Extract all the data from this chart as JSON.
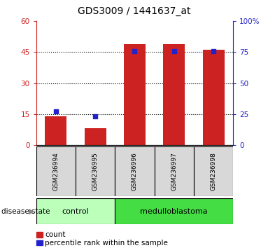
{
  "title": "GDS3009 / 1441637_at",
  "samples": [
    "GSM236994",
    "GSM236995",
    "GSM236996",
    "GSM236997",
    "GSM236998"
  ],
  "counts": [
    14,
    8,
    49,
    49,
    46
  ],
  "percentiles": [
    27,
    23,
    76,
    76,
    76
  ],
  "left_ylim": [
    0,
    60
  ],
  "right_ylim": [
    0,
    100
  ],
  "left_yticks": [
    0,
    15,
    30,
    45,
    60
  ],
  "right_yticks": [
    0,
    25,
    50,
    75,
    100
  ],
  "bar_color": "#cc2222",
  "marker_color": "#2222cc",
  "bar_width": 0.55,
  "groups": [
    {
      "label": "control",
      "indices": [
        0,
        1
      ],
      "color": "#bbffbb"
    },
    {
      "label": "medulloblastoma",
      "indices": [
        2,
        3,
        4
      ],
      "color": "#44dd44"
    }
  ],
  "group_label": "disease state",
  "legend_count": "count",
  "legend_percentile": "percentile rank within the sample",
  "left_axis_color": "#cc2222",
  "right_axis_color": "#2222cc",
  "grid_color": "black",
  "sample_box_color": "#d8d8d8",
  "title_fontsize": 10,
  "tick_fontsize": 7.5,
  "sample_fontsize": 6.5,
  "group_fontsize": 8,
  "legend_fontsize": 7.5
}
